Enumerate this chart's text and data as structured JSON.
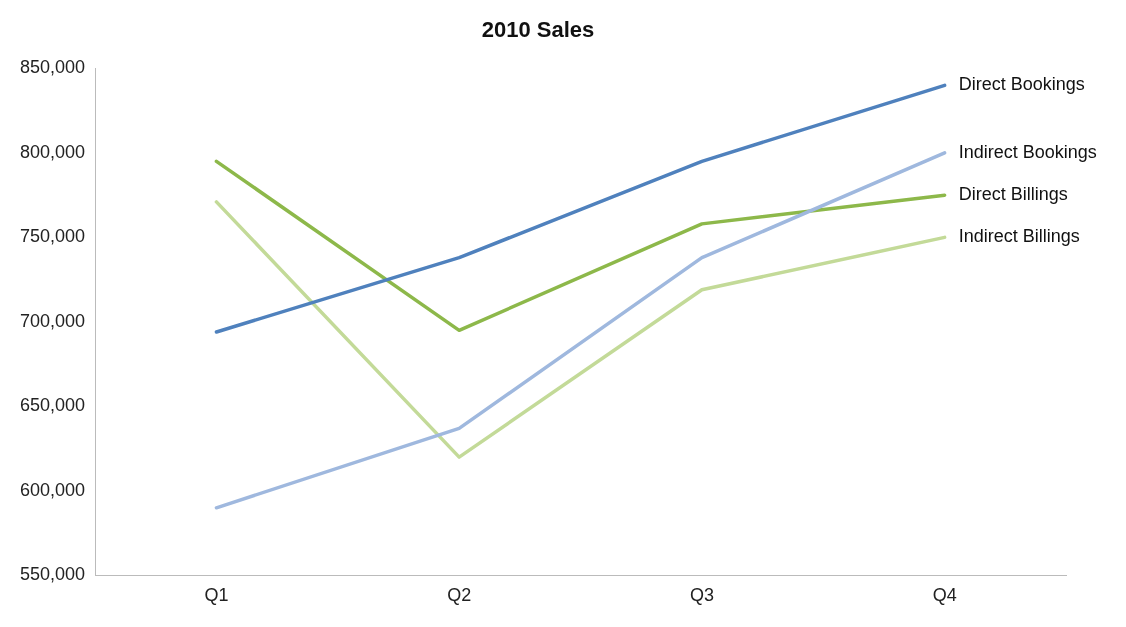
{
  "chart_data": {
    "type": "line",
    "title": "2010 Sales",
    "categories": [
      "Q1",
      "Q2",
      "Q3",
      "Q4"
    ],
    "series": [
      {
        "name": "Direct Bookings",
        "color": "#4f81bd",
        "values": [
          694000,
          738000,
          795000,
          840000
        ]
      },
      {
        "name": "Indirect Bookings",
        "color": "#9fb8de",
        "values": [
          590000,
          637000,
          738000,
          800000
        ]
      },
      {
        "name": "Direct Billings",
        "color": "#8db84a",
        "values": [
          795000,
          695000,
          758000,
          775000
        ]
      },
      {
        "name": "Indirect Billings",
        "color": "#c3da98",
        "values": [
          771000,
          620000,
          719000,
          750000
        ]
      }
    ],
    "ylim": [
      550000,
      850000
    ],
    "yticks": [
      {
        "value": 550000,
        "label": "550,000"
      },
      {
        "value": 600000,
        "label": "600,000"
      },
      {
        "value": 650000,
        "label": "650,000"
      },
      {
        "value": 700000,
        "label": "700,000"
      },
      {
        "value": 750000,
        "label": "750,000"
      },
      {
        "value": 800000,
        "label": "800,000"
      },
      {
        "value": 850000,
        "label": "850,000"
      }
    ],
    "marker": "none",
    "line_style": "solid"
  }
}
